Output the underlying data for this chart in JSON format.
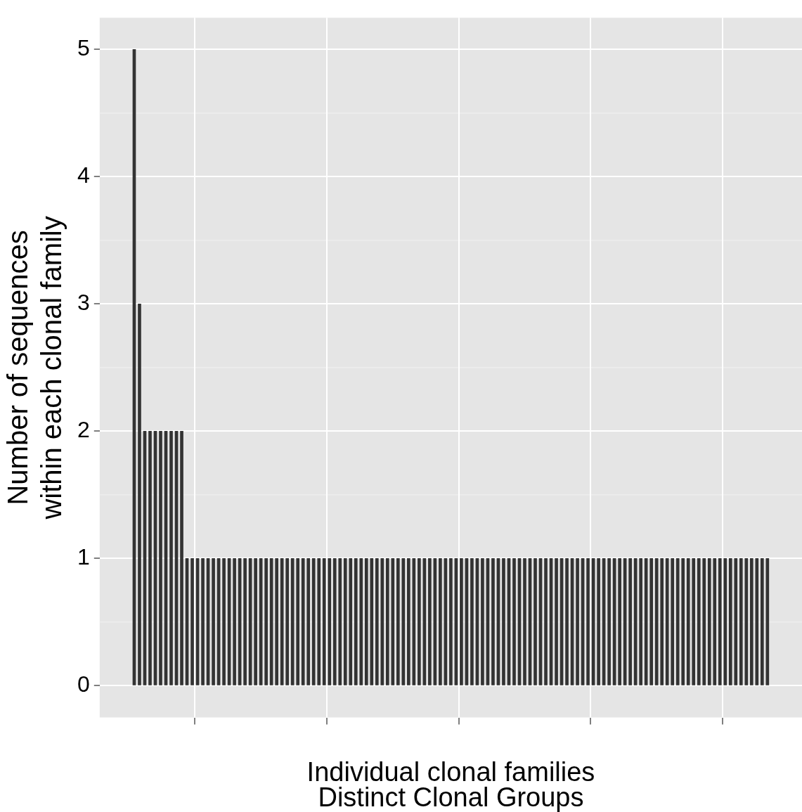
{
  "chart_data": {
    "type": "bar",
    "xlabel": "Individual clonal families",
    "ylabel": "Number of sequences within each clonal family",
    "annotations": [
      "Distinct Clonal Groups"
    ],
    "categories": [
      null,
      null,
      null,
      null,
      null,
      null,
      null,
      null,
      null,
      null,
      null,
      null,
      null,
      null,
      null,
      null,
      null,
      null,
      null,
      null,
      null,
      null,
      null,
      null,
      null,
      null,
      null,
      null,
      null,
      null,
      null,
      null,
      null,
      null,
      null,
      null,
      null,
      null,
      null,
      null,
      null,
      null,
      null,
      null,
      null,
      null,
      null,
      null,
      null,
      null,
      null,
      null,
      null,
      null,
      null,
      null,
      null,
      null,
      null,
      null,
      null,
      null,
      null,
      null,
      null,
      null,
      null,
      null,
      null,
      null,
      null,
      null,
      null,
      null,
      null,
      null,
      null,
      null,
      null,
      null,
      null,
      null,
      null,
      null,
      null,
      null,
      null,
      null,
      null,
      null,
      null,
      null,
      null,
      null,
      null,
      null,
      null,
      null,
      null,
      null,
      null,
      null,
      null,
      null,
      null,
      null,
      null,
      null,
      null,
      null,
      null,
      null,
      null,
      null,
      null,
      null,
      null,
      null,
      null,
      null,
      null
    ],
    "values": [
      5,
      3,
      2,
      2,
      2,
      2,
      2,
      2,
      2,
      2,
      1,
      1,
      1,
      1,
      1,
      1,
      1,
      1,
      1,
      1,
      1,
      1,
      1,
      1,
      1,
      1,
      1,
      1,
      1,
      1,
      1,
      1,
      1,
      1,
      1,
      1,
      1,
      1,
      1,
      1,
      1,
      1,
      1,
      1,
      1,
      1,
      1,
      1,
      1,
      1,
      1,
      1,
      1,
      1,
      1,
      1,
      1,
      1,
      1,
      1,
      1,
      1,
      1,
      1,
      1,
      1,
      1,
      1,
      1,
      1,
      1,
      1,
      1,
      1,
      1,
      1,
      1,
      1,
      1,
      1,
      1,
      1,
      1,
      1,
      1,
      1,
      1,
      1,
      1,
      1,
      1,
      1,
      1,
      1,
      1,
      1,
      1,
      1,
      1,
      1,
      1,
      1,
      1,
      1,
      1,
      1,
      1,
      1,
      1,
      1,
      1,
      1,
      1,
      1,
      1,
      1,
      1,
      1,
      1,
      1,
      1
    ],
    "color": "#333333",
    "ylim": [
      -0.25,
      5.25
    ],
    "yticks": [
      0,
      1,
      2,
      3,
      4,
      5
    ],
    "grid": true,
    "tick_labels": "y"
  }
}
